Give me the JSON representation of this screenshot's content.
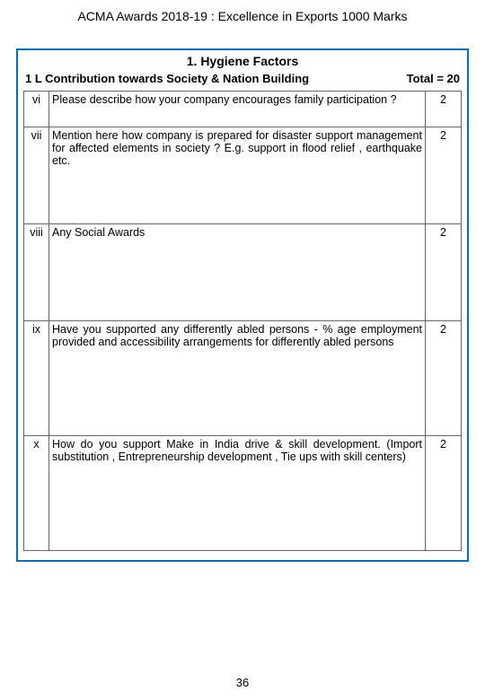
{
  "header": {
    "title": "ACMA  Awards  2018-19 :  Excellence in Exports 1000 Marks"
  },
  "section": {
    "title": "1. Hygiene Factors",
    "sub_label_left": "1 L  Contribution towards Society & Nation Building",
    "sub_label_right": "Total  = 20"
  },
  "rows": [
    {
      "num": "vi",
      "desc": "Please  describe  how    your    company    encourages  family participation ?",
      "marks": "2"
    },
    {
      "num": "vii",
      "desc": "Mention   here   how   company   is   prepared   for   disaster support management  for affected elements in society  ? E.g. support in flood relief , earthquake etc.",
      "marks": "2"
    },
    {
      "num": "viii",
      "desc": "Any Social Awards",
      "marks": "2"
    },
    {
      "num": "ix",
      "desc": "Have you supported any differently abled persons -   % age  employment  provided  and   accessibility  arrangements  for  differently abled persons",
      "marks": "2"
    },
    {
      "num": "x",
      "desc": "How do you support Make in India drive & skill development. (Import substitution , Entrepreneurship development ,  Tie ups with skill  centers)",
      "marks": "2"
    }
  ],
  "page_number": "36",
  "style": {
    "border_color": "#0070c0",
    "cell_border_color": "#666666",
    "background_color": "#ffffff",
    "text_color": "#000000",
    "title_fontsize": 14,
    "body_fontsize": 12.5
  }
}
